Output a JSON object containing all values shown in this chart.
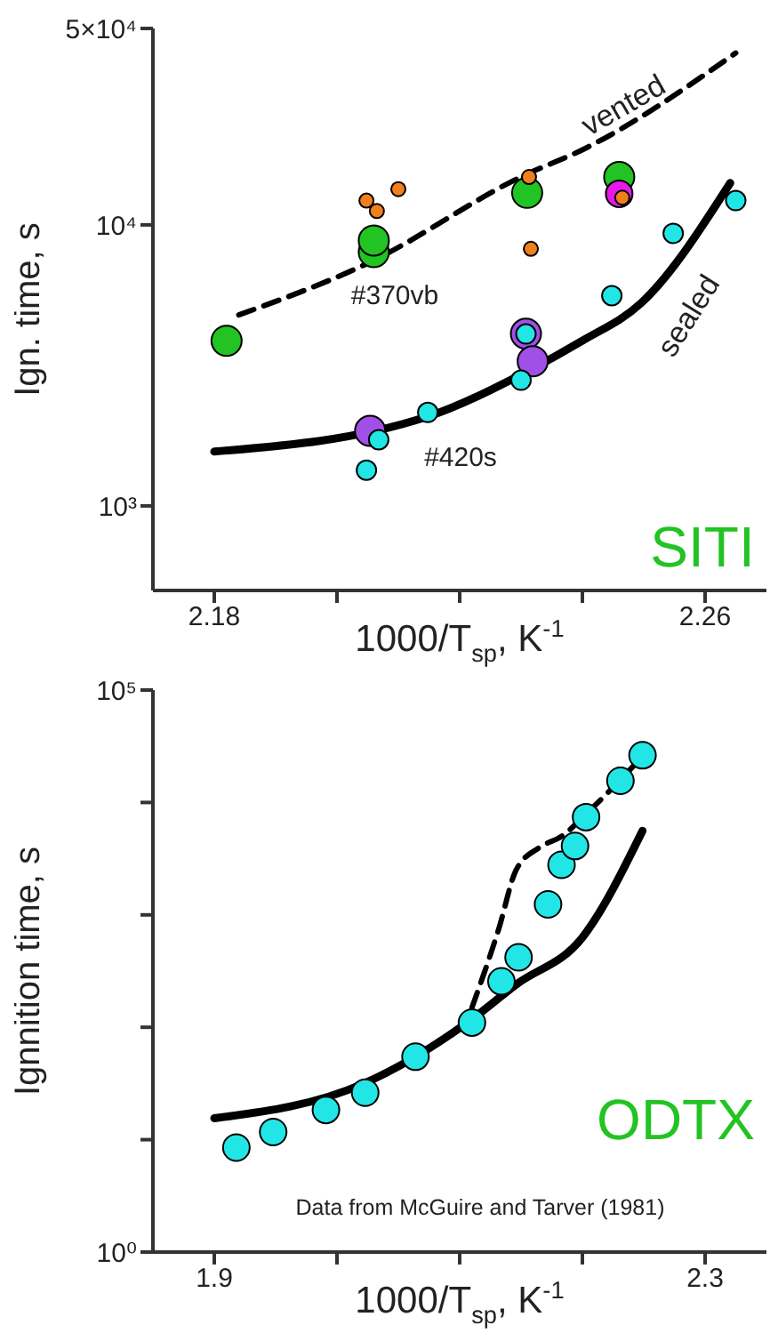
{
  "chart_data": [
    {
      "type": "scatter",
      "xlabel": "1000/T$_{sp}$, K$^{-1}$",
      "ylabel": "Ign. time, s",
      "log": "y",
      "marker": "circle",
      "legend": false,
      "grid": false,
      "xlim": [
        2.17,
        2.27
      ],
      "xticks": [
        2.18,
        {
          "value": 2.2,
          "label": null
        },
        {
          "value": 2.22,
          "label": null
        },
        {
          "value": 2.24,
          "label": null
        },
        2.26
      ],
      "ylim": [
        500,
        50000
      ],
      "yticks": [
        {
          "value": 1000,
          "label": "10³"
        },
        {
          "value": 10000,
          "label": "10⁴"
        },
        {
          "value": 50000,
          "label": "5×10⁴"
        }
      ],
      "series": [
        {
          "type": "line",
          "color": "#000000",
          "line_style": "dashed",
          "marker": "none",
          "x": [
            2.184,
            2.205,
            2.2305,
            2.24,
            2.265
          ],
          "values": [
            4780,
            7300,
            15000,
            18500,
            40900
          ]
        },
        {
          "type": "line",
          "color": "#000000",
          "line_style": "solid",
          "marker": "none",
          "x": [
            2.18,
            2.2145,
            2.231,
            2.24,
            2.2495,
            2.2641
          ],
          "values": [
            1560,
            2070,
            3010,
            3870,
            5250,
            14100
          ]
        },
        {
          "color": "#22c322",
          "x": [
            2.182,
            2.206,
            2.206,
            2.231,
            2.246
          ],
          "values": [
            3870,
            8000,
            8800,
            13000,
            14800
          ]
        },
        {
          "color": "#a050e6",
          "x": [
            2.2308,
            2.2319,
            2.2054
          ],
          "values": [
            4100,
            3270,
            1850
          ]
        },
        {
          "color": "#e619e6",
          "x": [
            2.246
          ],
          "values": [
            12900
          ]
        },
        {
          "color": "#22e6e6",
          "x": [
            2.2548,
            2.265,
            2.2448,
            2.2308,
            2.23,
            2.2148,
            2.2068,
            2.2048
          ],
          "values": [
            9330,
            12200,
            5600,
            4090,
            2800,
            2150,
            1720,
            1340
          ]
        },
        {
          "color": "#f07f1e",
          "x": [
            2.2048,
            2.2065,
            2.21,
            2.2313,
            2.2316,
            2.2465
          ],
          "values": [
            12200,
            11200,
            13400,
            14800,
            8220,
            12500
          ]
        }
      ],
      "annotations": [
        "SITI",
        "vented",
        "sealed",
        "#370vb",
        "#420s"
      ]
    },
    {
      "type": "scatter",
      "xlabel": "1000/T$_{sp}$, K$^{-1}$",
      "ylabel": "Ignnition time, s",
      "log": "y",
      "marker": "circle",
      "legend": false,
      "grid": false,
      "xlim": [
        1.85,
        2.35
      ],
      "xticks": [
        1.9,
        {
          "value": 2.0,
          "label": null
        },
        {
          "value": 2.1,
          "label": null
        },
        {
          "value": 2.2,
          "label": null
        },
        2.3
      ],
      "ylim": [
        1,
        100000
      ],
      "yticks": [
        {
          "value": 1,
          "label": "10⁰"
        },
        {
          "value": 10,
          "label": null
        },
        {
          "value": 100,
          "label": null
        },
        {
          "value": 1000,
          "label": null
        },
        {
          "value": 10000,
          "label": null
        },
        {
          "value": 100000,
          "label": "10⁵"
        }
      ],
      "series": [
        {
          "type": "line",
          "color": "#000000",
          "line_style": "solid",
          "marker": "none",
          "x": [
            1.9,
            2.023,
            2.11,
            2.146,
            2.2,
            2.249
          ],
          "values": [
            15.5,
            32,
            118,
            240,
            630,
            5600
          ]
        },
        {
          "type": "line",
          "color": "#000000",
          "line_style": "dashed",
          "marker": "none",
          "x": [
            2.11,
            2.132,
            2.146,
            2.165,
            2.183,
            2.206,
            2.248
          ],
          "values": [
            150,
            760,
            2510,
            3980,
            5000,
            8500,
            25000
          ]
        },
        {
          "color": "#22e6e6",
          "x": [
            1.918,
            1.948,
            1.991,
            2.023,
            2.064,
            2.11,
            2.134,
            2.148,
            2.172,
            2.183,
            2.194,
            2.203,
            2.231,
            2.249
          ],
          "values": [
            8.5,
            11.7,
            18.4,
            26.2,
            54.7,
            110,
            256,
            419,
            1240,
            2790,
            4100,
            7400,
            15600,
            26300
          ]
        }
      ],
      "annotations": [
        "ODTX",
        "Data from McGuire and Tarver (1981)"
      ]
    }
  ]
}
